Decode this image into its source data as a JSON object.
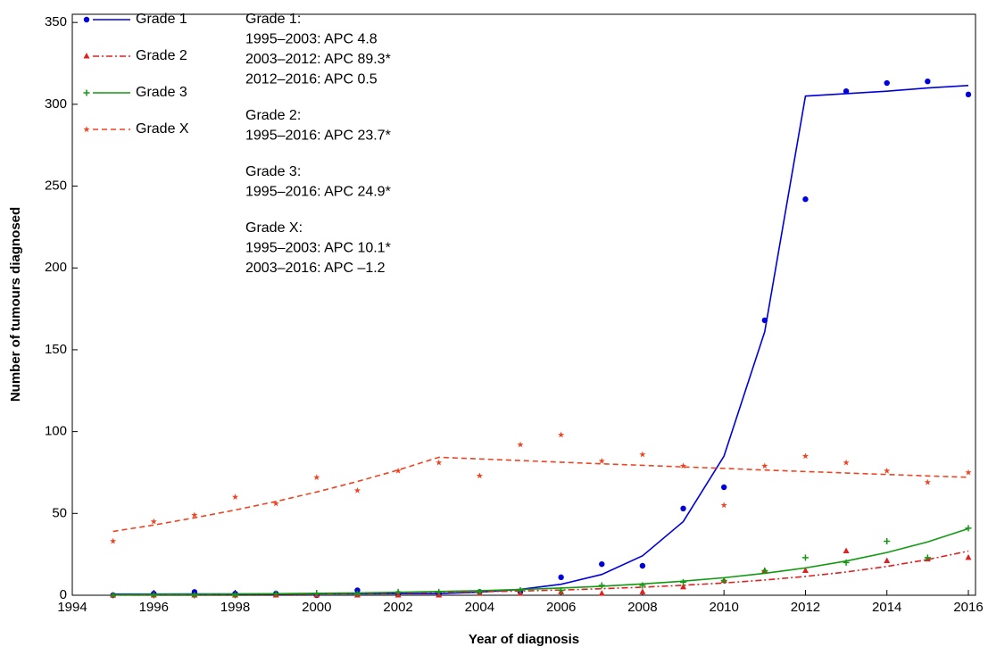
{
  "chart_data": {
    "type": "scatter-fit",
    "xlabel": "Year of diagnosis",
    "ylabel": "Number of tumours diagnosed",
    "x": [
      1995,
      1996,
      1997,
      1998,
      1999,
      2000,
      2001,
      2002,
      2003,
      2004,
      2005,
      2006,
      2007,
      2008,
      2009,
      2010,
      2011,
      2012,
      2013,
      2014,
      2015,
      2016
    ],
    "xlim": [
      1994,
      2016
    ],
    "xticks": [
      1994,
      1996,
      1998,
      2000,
      2002,
      2004,
      2006,
      2008,
      2010,
      2012,
      2014,
      2016
    ],
    "ylim": [
      0,
      355
    ],
    "yticks": [
      0,
      50,
      100,
      150,
      200,
      250,
      300,
      350
    ],
    "series": [
      {
        "name": "Grade 1",
        "color": "#0000dd",
        "marker": "dot",
        "dash": "solid",
        "values": [
          0,
          1,
          2,
          1,
          1,
          0,
          3,
          1,
          1,
          2,
          2,
          11,
          19,
          18,
          53,
          66,
          168,
          242,
          308,
          313,
          314,
          306
        ],
        "fit": [
          0.7,
          0.7,
          0.8,
          0.8,
          0.8,
          0.9,
          0.9,
          1.0,
          1.0,
          1.9,
          3.6,
          6.7,
          12.7,
          24.1,
          45,
          85,
          161,
          305,
          306.5,
          308,
          310,
          311.5
        ]
      },
      {
        "name": "Grade 2",
        "color": "#dd2222",
        "marker": "triangle",
        "dash": "dashdot",
        "values": [
          0,
          0,
          0,
          0,
          0,
          0,
          0,
          0,
          0,
          1,
          1,
          2,
          1,
          2,
          5,
          9,
          15,
          15,
          27,
          21,
          22,
          23
        ],
        "fit": [
          0.3,
          0.4,
          0.5,
          0.6,
          0.7,
          0.9,
          1.1,
          1.4,
          1.7,
          2.1,
          2.6,
          3.2,
          4.0,
          4.9,
          6.1,
          7.5,
          9.3,
          11.5,
          14.2,
          17.6,
          21.8,
          27.0
        ]
      },
      {
        "name": "Grade 3",
        "color": "#119911",
        "marker": "plus",
        "dash": "solid",
        "values": [
          0,
          0,
          0,
          0,
          1,
          1,
          1,
          2,
          2,
          2,
          3,
          3,
          6,
          6,
          8,
          9,
          15,
          23,
          20,
          33,
          23,
          41
        ],
        "fit": [
          0.4,
          0.5,
          0.6,
          0.7,
          0.9,
          1.2,
          1.4,
          1.8,
          2.3,
          2.8,
          3.5,
          4.4,
          5.5,
          6.9,
          8.6,
          10.7,
          13.4,
          16.7,
          20.9,
          26.1,
          32.6,
          40.7
        ]
      },
      {
        "name": "Grade X",
        "color": "#ee4422",
        "marker": "star",
        "dash": "dashed",
        "values": [
          33,
          45,
          49,
          60,
          56,
          72,
          64,
          76,
          81,
          73,
          92,
          98,
          82,
          86,
          79,
          55,
          79,
          85,
          81,
          76,
          69,
          75
        ],
        "fit": [
          39.0,
          42.9,
          47.3,
          52.1,
          57.3,
          63.1,
          69.5,
          76.5,
          84.3,
          83.3,
          82.3,
          81.3,
          80.3,
          79.4,
          78.4,
          77.5,
          76.5,
          75.6,
          74.7,
          73.8,
          72.9,
          72.1
        ]
      }
    ],
    "annotations": [
      [
        "Grade 1:",
        "1995–2003: APC 4.8",
        "2003–2012: APC 89.3*",
        "2012–2016: APC 0.5"
      ],
      [
        "Grade 2:",
        "1995–2016: APC 23.7*"
      ],
      [
        "Grade 3:",
        "1995–2016: APC 24.9*"
      ],
      [
        "Grade X:",
        "1995–2003: APC 10.1*",
        "2003–2016: APC –1.2"
      ]
    ]
  }
}
